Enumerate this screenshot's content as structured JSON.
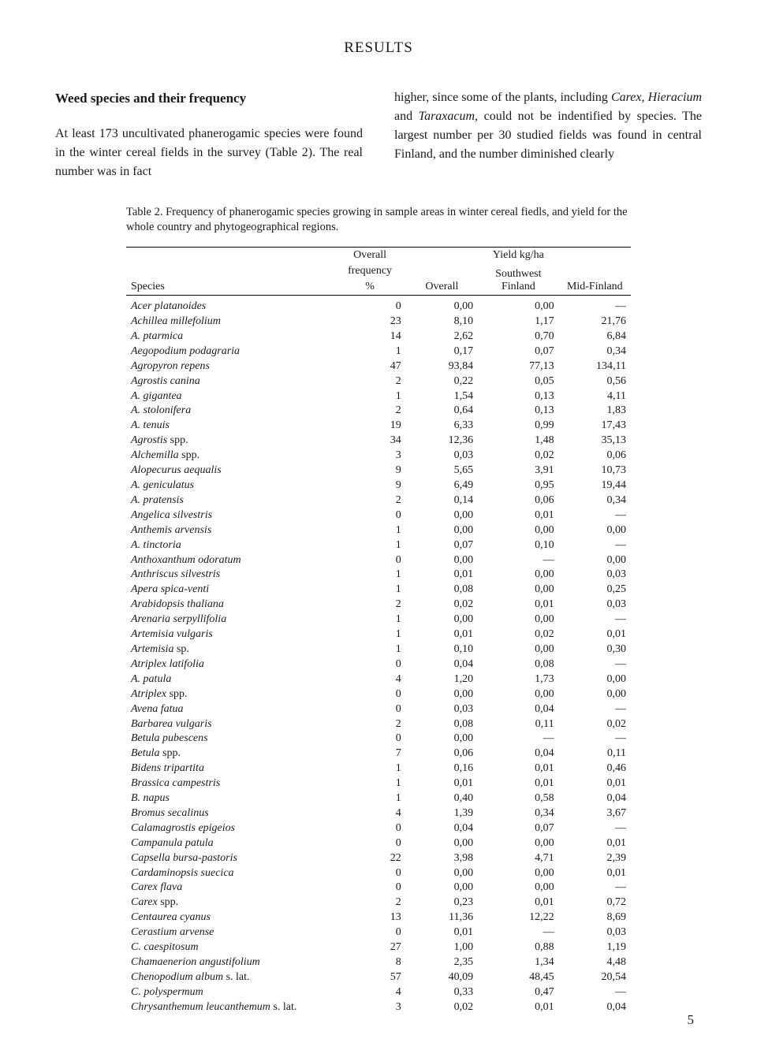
{
  "section_title": "RESULTS",
  "subheading": "Weed species and their frequency",
  "col_left": "At least 173 uncultivated phanerogamic species were found in the winter cereal fields in the survey (Table 2). The real number was in fact",
  "col_right_1": "higher, since some of the plants, including ",
  "col_right_italic_1": "Carex, Hieracium",
  "col_right_mid": " and ",
  "col_right_italic_2": "Taraxacum,",
  "col_right_2": " could not be indentified by species. The largest number per 30 studied fields was found in central Finland, and the number diminished clearly",
  "table_caption": "Table 2. Frequency of phanerogamic species growing in sample areas in winter cereal fiedls, and yield for the whole country and phytogeographical regions.",
  "head_species": "Species",
  "head_overall_freq_1": "Overall",
  "head_overall_freq_2": "frequency",
  "head_overall_freq_3": "%",
  "head_yield": "Yield kg/ha",
  "head_overall": "Overall",
  "head_sw": "Southwest Finland",
  "head_mid": "Mid-Finland",
  "page_number": "5",
  "rows": [
    {
      "sp": "Acer platanoides",
      "f": "0",
      "o": "0,00",
      "sw": "0,00",
      "m": "—"
    },
    {
      "sp": "Achillea millefolium",
      "f": "23",
      "o": "8,10",
      "sw": "1,17",
      "m": "21,76"
    },
    {
      "sp": "A. ptarmica",
      "f": "14",
      "o": "2,62",
      "sw": "0,70",
      "m": "6,84"
    },
    {
      "sp": "Aegopodium podagraria",
      "f": "1",
      "o": "0,17",
      "sw": "0,07",
      "m": "0,34"
    },
    {
      "sp": "Agropyron repens",
      "f": "47",
      "o": "93,84",
      "sw": "77,13",
      "m": "134,11"
    },
    {
      "sp": "Agrostis canina",
      "f": "2",
      "o": "0,22",
      "sw": "0,05",
      "m": "0,56"
    },
    {
      "sp": "A. gigantea",
      "f": "1",
      "o": "1,54",
      "sw": "0,13",
      "m": "4,11"
    },
    {
      "sp": "A. stolonifera",
      "f": "2",
      "o": "0,64",
      "sw": "0,13",
      "m": "1,83"
    },
    {
      "sp": "A. tenuis",
      "f": "19",
      "o": "6,33",
      "sw": "0,99",
      "m": "17,43"
    },
    {
      "sp": "Agrostis spp.",
      "f": "34",
      "o": "12,36",
      "sw": "1,48",
      "m": "35,13"
    },
    {
      "sp": "Alchemilla spp.",
      "f": "3",
      "o": "0,03",
      "sw": "0,02",
      "m": "0,06"
    },
    {
      "sp": "Alopecurus aequalis",
      "f": "9",
      "o": "5,65",
      "sw": "3,91",
      "m": "10,73"
    },
    {
      "sp": "A. geniculatus",
      "f": "9",
      "o": "6,49",
      "sw": "0,95",
      "m": "19,44"
    },
    {
      "sp": "A. pratensis",
      "f": "2",
      "o": "0,14",
      "sw": "0,06",
      "m": "0,34"
    },
    {
      "sp": "Angelica silvestris",
      "f": "0",
      "o": "0,00",
      "sw": "0,01",
      "m": "—"
    },
    {
      "sp": "Anthemis arvensis",
      "f": "1",
      "o": "0,00",
      "sw": "0,00",
      "m": "0,00"
    },
    {
      "sp": "A. tinctoria",
      "f": "1",
      "o": "0,07",
      "sw": "0,10",
      "m": "—"
    },
    {
      "sp": "Anthoxanthum odoratum",
      "f": "0",
      "o": "0,00",
      "sw": "—",
      "m": "0,00"
    },
    {
      "sp": "Anthriscus silvestris",
      "f": "1",
      "o": "0,01",
      "sw": "0,00",
      "m": "0,03"
    },
    {
      "sp": "Apera spica-venti",
      "f": "1",
      "o": "0,08",
      "sw": "0,00",
      "m": "0,25"
    },
    {
      "sp": "Arabidopsis thaliana",
      "f": "2",
      "o": "0,02",
      "sw": "0,01",
      "m": "0,03"
    },
    {
      "sp": "Arenaria serpyllifolia",
      "f": "1",
      "o": "0,00",
      "sw": "0,00",
      "m": "—"
    },
    {
      "sp": "Artemisia vulgaris",
      "f": "1",
      "o": "0,01",
      "sw": "0,02",
      "m": "0,01"
    },
    {
      "sp": "Artemisia sp.",
      "f": "1",
      "o": "0,10",
      "sw": "0,00",
      "m": "0,30"
    },
    {
      "sp": "Atriplex latifolia",
      "f": "0",
      "o": "0,04",
      "sw": "0,08",
      "m": "—"
    },
    {
      "sp": "A. patula",
      "f": "4",
      "o": "1,20",
      "sw": "1,73",
      "m": "0,00"
    },
    {
      "sp": "Atriplex spp.",
      "f": "0",
      "o": "0,00",
      "sw": "0,00",
      "m": "0,00"
    },
    {
      "sp": "Avena fatua",
      "f": "0",
      "o": "0,03",
      "sw": "0,04",
      "m": "—"
    },
    {
      "sp": "Barbarea vulgaris",
      "f": "2",
      "o": "0,08",
      "sw": "0,11",
      "m": "0,02"
    },
    {
      "sp": "Betula pubescens",
      "f": "0",
      "o": "0,00",
      "sw": "—",
      "m": "—"
    },
    {
      "sp": "Betula spp.",
      "f": "7",
      "o": "0,06",
      "sw": "0,04",
      "m": "0,11"
    },
    {
      "sp": "Bidens tripartita",
      "f": "1",
      "o": "0,16",
      "sw": "0,01",
      "m": "0,46"
    },
    {
      "sp": "Brassica campestris",
      "f": "1",
      "o": "0,01",
      "sw": "0,01",
      "m": "0,01"
    },
    {
      "sp": "B. napus",
      "f": "1",
      "o": "0,40",
      "sw": "0,58",
      "m": "0,04"
    },
    {
      "sp": "Bromus secalinus",
      "f": "4",
      "o": "1,39",
      "sw": "0,34",
      "m": "3,67"
    },
    {
      "sp": "Calamagrostis epigeios",
      "f": "0",
      "o": "0,04",
      "sw": "0,07",
      "m": "—"
    },
    {
      "sp": "Campanula patula",
      "f": "0",
      "o": "0,00",
      "sw": "0,00",
      "m": "0,01"
    },
    {
      "sp": "Capsella bursa-pastoris",
      "f": "22",
      "o": "3,98",
      "sw": "4,71",
      "m": "2,39"
    },
    {
      "sp": "Cardaminopsis suecica",
      "f": "0",
      "o": "0,00",
      "sw": "0,00",
      "m": "0,01"
    },
    {
      "sp": "Carex flava",
      "f": "0",
      "o": "0,00",
      "sw": "0,00",
      "m": "—"
    },
    {
      "sp": "Carex spp.",
      "f": "2",
      "o": "0,23",
      "sw": "0,01",
      "m": "0,72"
    },
    {
      "sp": "Centaurea cyanus",
      "f": "13",
      "o": "11,36",
      "sw": "12,22",
      "m": "8,69"
    },
    {
      "sp": "Cerastium arvense",
      "f": "0",
      "o": "0,01",
      "sw": "—",
      "m": "0,03"
    },
    {
      "sp": "C. caespitosum",
      "f": "27",
      "o": "1,00",
      "sw": "0,88",
      "m": "1,19"
    },
    {
      "sp": "Chamaenerion angustifolium",
      "f": "8",
      "o": "2,35",
      "sw": "1,34",
      "m": "4,48"
    },
    {
      "sp": "Chenopodium album s. lat.",
      "f": "57",
      "o": "40,09",
      "sw": "48,45",
      "m": "20,54"
    },
    {
      "sp": "C. polyspermum",
      "f": "4",
      "o": "0,33",
      "sw": "0,47",
      "m": "—"
    },
    {
      "sp": "Chrysanthemum leucanthemum s. lat.",
      "f": "3",
      "o": "0,02",
      "sw": "0,01",
      "m": "0,04"
    }
  ]
}
